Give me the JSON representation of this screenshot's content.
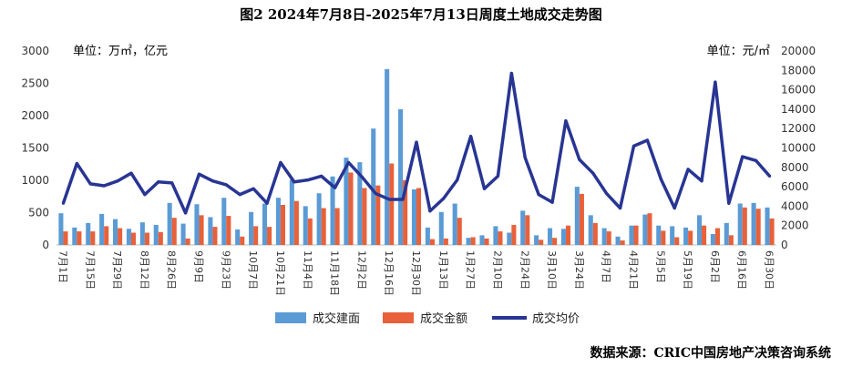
{
  "chart_data": {
    "type": "bar+line",
    "title": "图2   2024年7月8日-2025年7月13日周度土地成交走势图",
    "left_unit": "单位：万㎡，亿元",
    "right_unit": "单位：元/㎡",
    "source": "数据来源：CRIC中国房地产决策咨询系统",
    "y_left": {
      "min": 0,
      "max": 3000,
      "ticks": [
        0,
        500,
        1000,
        1500,
        2000,
        2500,
        3000
      ]
    },
    "y_right": {
      "min": 0,
      "max": 20000,
      "ticks": [
        0,
        2000,
        4000,
        6000,
        8000,
        10000,
        12000,
        14000,
        16000,
        18000,
        20000
      ]
    },
    "x_tick_labels": [
      "7月1日",
      "7月15日",
      "7月29日",
      "8月12日",
      "8月26日",
      "9月9日",
      "9月23日",
      "10月7日",
      "10月21日",
      "11月4日",
      "11月18日",
      "12月2日",
      "12月16日",
      "12月30日",
      "1月13日",
      "1月27日",
      "2月10日",
      "2月24日",
      "3月10日",
      "3月24日",
      "4月7日",
      "4月21日",
      "5月5日",
      "5月19日",
      "6月2日",
      "6月16日",
      "6月30日"
    ],
    "series": [
      {
        "name": "成交建面",
        "type": "bar",
        "axis": "left",
        "color": "#5b9bd5",
        "values": [
          490,
          270,
          340,
          480,
          400,
          250,
          350,
          310,
          650,
          330,
          630,
          430,
          730,
          240,
          510,
          640,
          730,
          1010,
          600,
          800,
          1060,
          1350,
          1280,
          1800,
          2720,
          2100,
          860,
          270,
          510,
          640,
          110,
          150,
          290,
          190,
          530,
          150,
          260,
          250,
          900,
          460,
          260,
          130,
          300,
          470,
          300,
          290,
          270,
          460,
          170,
          340,
          640,
          650,
          580
        ]
      },
      {
        "name": "成交金额",
        "type": "bar",
        "axis": "left",
        "color": "#e8613a",
        "values": [
          210,
          210,
          210,
          290,
          260,
          190,
          190,
          200,
          420,
          100,
          460,
          280,
          450,
          130,
          290,
          280,
          620,
          680,
          410,
          570,
          570,
          1120,
          880,
          920,
          1260,
          1000,
          880,
          90,
          100,
          420,
          120,
          100,
          210,
          310,
          460,
          80,
          110,
          300,
          790,
          340,
          210,
          70,
          300,
          490,
          220,
          120,
          220,
          300,
          260,
          150,
          580,
          560,
          410
        ]
      },
      {
        "name": "成交均价",
        "type": "line",
        "axis": "right",
        "color": "#283593",
        "values": [
          4300,
          8400,
          6300,
          6100,
          6600,
          7400,
          5200,
          6500,
          6400,
          3300,
          7300,
          6600,
          6200,
          5200,
          5800,
          4300,
          8500,
          6500,
          6700,
          7100,
          5900,
          8500,
          7000,
          5300,
          4700,
          4700,
          10600,
          3500,
          4800,
          6700,
          11200,
          5800,
          7100,
          17700,
          9000,
          5200,
          4400,
          12800,
          8800,
          7400,
          5300,
          3800,
          10200,
          10800,
          6800,
          3800,
          7800,
          6600,
          16800,
          4300,
          9100,
          8700,
          7100
        ]
      }
    ],
    "legend_position": "bottom"
  }
}
